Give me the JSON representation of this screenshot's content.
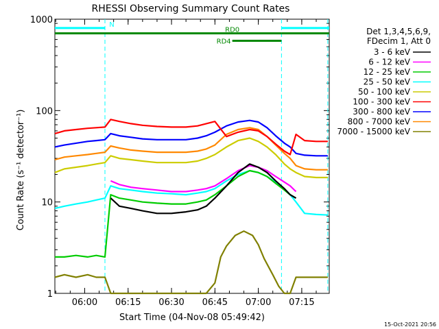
{
  "chart_data": {
    "type": "line",
    "title": "RHESSI Observing Summary Count Rates",
    "xlabel": "Start Time (04-Nov-08 05:49:42)",
    "ylabel": "Count Rate (s⁻¹ detector⁻¹)",
    "y_scale": "log",
    "ylim": [
      1,
      1000
    ],
    "y_ticks": [
      {
        "value": 1,
        "label": "1"
      },
      {
        "value": 10,
        "label": "10"
      },
      {
        "value": 100,
        "label": "100"
      },
      {
        "value": 1000,
        "label": "1000"
      }
    ],
    "xlim": [
      "05:49:42",
      "07:24:30"
    ],
    "x_ticks": [
      {
        "time": "06:00",
        "label": "06:00"
      },
      {
        "time": "06:15",
        "label": "06:15"
      },
      {
        "time": "06:30",
        "label": "06:30"
      },
      {
        "time": "06:45",
        "label": "06:45"
      },
      {
        "time": "07:00",
        "label": "07:00"
      },
      {
        "time": "07:15",
        "label": "07:15"
      }
    ],
    "legend_header": [
      "Det 1,3,4,5,6,9,",
      "FDecim 1, Att 0"
    ],
    "legend_position": "right",
    "series": [
      {
        "name": "3 - 6 keV",
        "color": "#000000",
        "x": [
          "05:49:42",
          "05:53",
          "05:57",
          "06:01",
          "06:04",
          "06:07",
          "06:09",
          "06:12",
          "06:16",
          "06:20",
          "06:25",
          "06:30",
          "06:35",
          "06:39",
          "06:42",
          "06:45",
          "06:49",
          "06:53",
          "06:57",
          "07:00",
          "07:03",
          "07:06",
          "07:09",
          "07:11",
          "07:13"
        ],
        "y": [
          null,
          null,
          null,
          null,
          null,
          null,
          11,
          9,
          8.5,
          8,
          7.5,
          7.5,
          7.8,
          8.2,
          9,
          11,
          15,
          21,
          26,
          24,
          21,
          17,
          14,
          12,
          11
        ]
      },
      {
        "name": "6 - 12 keV",
        "color": "#ff00ff",
        "x": [
          "06:09",
          "06:12",
          "06:16",
          "06:20",
          "06:25",
          "06:30",
          "06:35",
          "06:39",
          "06:42",
          "06:45",
          "06:49",
          "06:53",
          "06:57",
          "07:00",
          "07:03",
          "07:06",
          "07:09",
          "07:11",
          "07:13"
        ],
        "y": [
          17,
          15.5,
          14.5,
          14,
          13.5,
          13,
          13,
          13.5,
          14,
          15,
          18,
          22,
          25,
          24,
          22,
          19,
          16.5,
          15,
          13
        ]
      },
      {
        "name": "12 - 25 keV",
        "color": "#00cc00",
        "x": [
          "05:49:42",
          "05:53",
          "05:57",
          "06:01",
          "06:04",
          "06:07",
          "06:09",
          "06:12",
          "06:16",
          "06:20",
          "06:25",
          "06:30",
          "06:35",
          "06:39",
          "06:42",
          "06:45",
          "06:49",
          "06:53",
          "06:57",
          "07:00",
          "07:03",
          "07:06",
          "07:09",
          "07:11",
          "07:13"
        ],
        "y": [
          2.5,
          2.5,
          2.6,
          2.5,
          2.6,
          2.5,
          12,
          11,
          10.5,
          10,
          9.7,
          9.5,
          9.5,
          10,
          10.5,
          12,
          15,
          19,
          22,
          21,
          19,
          16,
          13.5,
          12,
          11
        ]
      },
      {
        "name": "25 - 50 keV",
        "color": "#00ffff",
        "x": [
          "05:49:42",
          "05:53",
          "05:57",
          "06:01",
          "06:04",
          "06:07",
          "06:09",
          "06:12",
          "06:16",
          "06:20",
          "06:25",
          "06:30",
          "06:35",
          "06:39",
          "06:42",
          "06:45",
          "06:49",
          "06:53",
          "06:57",
          "07:00",
          "07:03",
          "07:06",
          "07:09",
          "07:11",
          "07:13",
          "07:16",
          "07:20",
          "07:24"
        ],
        "y": [
          8.5,
          9,
          9.5,
          10,
          10.5,
          11,
          15,
          14,
          13.5,
          13,
          12.5,
          12.3,
          12,
          12.5,
          13,
          14,
          17,
          20,
          22,
          21,
          19,
          16.5,
          14,
          12,
          10,
          7.5,
          7.3,
          7.2
        ]
      },
      {
        "name": "50 - 100 keV",
        "color": "#cccc00",
        "x": [
          "05:49:42",
          "05:53",
          "05:57",
          "06:01",
          "06:04",
          "06:07",
          "06:09",
          "06:12",
          "06:16",
          "06:20",
          "06:25",
          "06:30",
          "06:35",
          "06:39",
          "06:42",
          "06:45",
          "06:49",
          "06:53",
          "06:57",
          "07:00",
          "07:03",
          "07:06",
          "07:09",
          "07:11",
          "07:13",
          "07:16",
          "07:20",
          "07:24"
        ],
        "y": [
          21,
          23,
          24,
          25,
          26,
          27,
          32,
          30,
          29,
          28,
          27,
          27,
          27,
          28,
          30,
          33,
          40,
          47,
          50,
          46,
          40,
          33,
          26,
          23,
          21,
          19,
          18.5,
          18.5
        ]
      },
      {
        "name": "100 - 300 keV",
        "color": "#ff0000",
        "x": [
          "05:49:42",
          "05:53",
          "05:57",
          "06:01",
          "06:04",
          "06:07",
          "06:09",
          "06:12",
          "06:16",
          "06:20",
          "06:25",
          "06:30",
          "06:35",
          "06:39",
          "06:42",
          "06:45",
          "06:49",
          "06:53",
          "06:57",
          "07:00",
          "07:03",
          "07:06",
          "07:09",
          "07:11",
          "07:13",
          "07:16",
          "07:20",
          "07:24"
        ],
        "y": [
          56,
          60,
          62,
          64,
          65,
          66,
          80,
          76,
          72,
          69,
          67,
          66,
          66,
          68,
          72,
          76,
          52,
          58,
          62,
          60,
          52,
          43,
          36,
          33,
          55,
          47,
          46,
          46
        ]
      },
      {
        "name": "300 - 800 keV",
        "color": "#0000ff",
        "x": [
          "05:49:42",
          "05:53",
          "05:57",
          "06:01",
          "06:04",
          "06:07",
          "06:09",
          "06:12",
          "06:16",
          "06:20",
          "06:25",
          "06:30",
          "06:35",
          "06:39",
          "06:42",
          "06:45",
          "06:49",
          "06:53",
          "06:57",
          "07:00",
          "07:03",
          "07:06",
          "07:09",
          "07:11",
          "07:13",
          "07:16",
          "07:20",
          "07:24"
        ],
        "y": [
          40,
          42,
          44,
          46,
          47,
          48,
          56,
          53,
          51,
          49,
          48,
          48,
          48,
          50,
          53,
          58,
          68,
          75,
          78,
          75,
          65,
          53,
          44,
          40,
          34,
          32.5,
          32,
          32
        ]
      },
      {
        "name": "800 - 7000 keV",
        "color": "#ff8800",
        "x": [
          "05:49:42",
          "05:53",
          "05:57",
          "06:01",
          "06:04",
          "06:07",
          "06:09",
          "06:12",
          "06:16",
          "06:20",
          "06:25",
          "06:30",
          "06:35",
          "06:39",
          "06:42",
          "06:45",
          "06:49",
          "06:53",
          "06:57",
          "07:00",
          "07:03",
          "07:06",
          "07:09",
          "07:11",
          "07:13",
          "07:16",
          "07:20",
          "07:24"
        ],
        "y": [
          29,
          31,
          32,
          33,
          34,
          35,
          41,
          39,
          37,
          36,
          35,
          35,
          35,
          36,
          38,
          42,
          55,
          62,
          65,
          62,
          52,
          42,
          34,
          30,
          25,
          23,
          22.5,
          22.5
        ]
      },
      {
        "name": "7000 - 15000 keV",
        "color": "#808000",
        "x": [
          "05:49:42",
          "05:53",
          "05:57",
          "06:01",
          "06:04",
          "06:07",
          "06:09",
          "06:16",
          "06:25",
          "06:35",
          "06:42",
          "06:45",
          "06:47",
          "06:49",
          "06:52",
          "06:55",
          "06:58",
          "07:00",
          "07:02",
          "07:05",
          "07:07",
          "07:09",
          "07:11",
          "07:13",
          "07:16",
          "07:20",
          "07:24"
        ],
        "y": [
          1.5,
          1.6,
          1.5,
          1.6,
          1.5,
          1.5,
          1,
          1,
          1,
          1,
          1,
          1.3,
          2.5,
          3.3,
          4.3,
          4.8,
          4.3,
          3.4,
          2.4,
          1.6,
          1.2,
          1,
          1,
          1.5,
          1.5,
          1.5,
          1.5
        ]
      }
    ],
    "annotations": {
      "bars": [
        {
          "label": "N",
          "color": "#00ffff",
          "value": 800,
          "x_ranges": [
            [
              "05:49:42",
              "06:07"
            ],
            [
              "07:08",
              "07:24:30"
            ]
          ]
        },
        {
          "label": "RD0",
          "color": "#008800",
          "value": 700,
          "x_ranges": [
            [
              "05:49:42",
              "07:08"
            ],
            [
              "07:08",
              "07:24:30"
            ]
          ]
        },
        {
          "label": "RD4",
          "color": "#008800",
          "value": 580,
          "x_ranges": [
            [
              "06:51",
              "07:08"
            ]
          ]
        }
      ],
      "vlines": [
        {
          "time": "06:07",
          "color": "#00ffff"
        },
        {
          "time": "07:08",
          "color": "#00ffff"
        },
        {
          "time": "07:24",
          "color": "#00ffff"
        }
      ]
    },
    "grid": false
  },
  "footer_timestamp": "15-Oct-2021 20:56"
}
